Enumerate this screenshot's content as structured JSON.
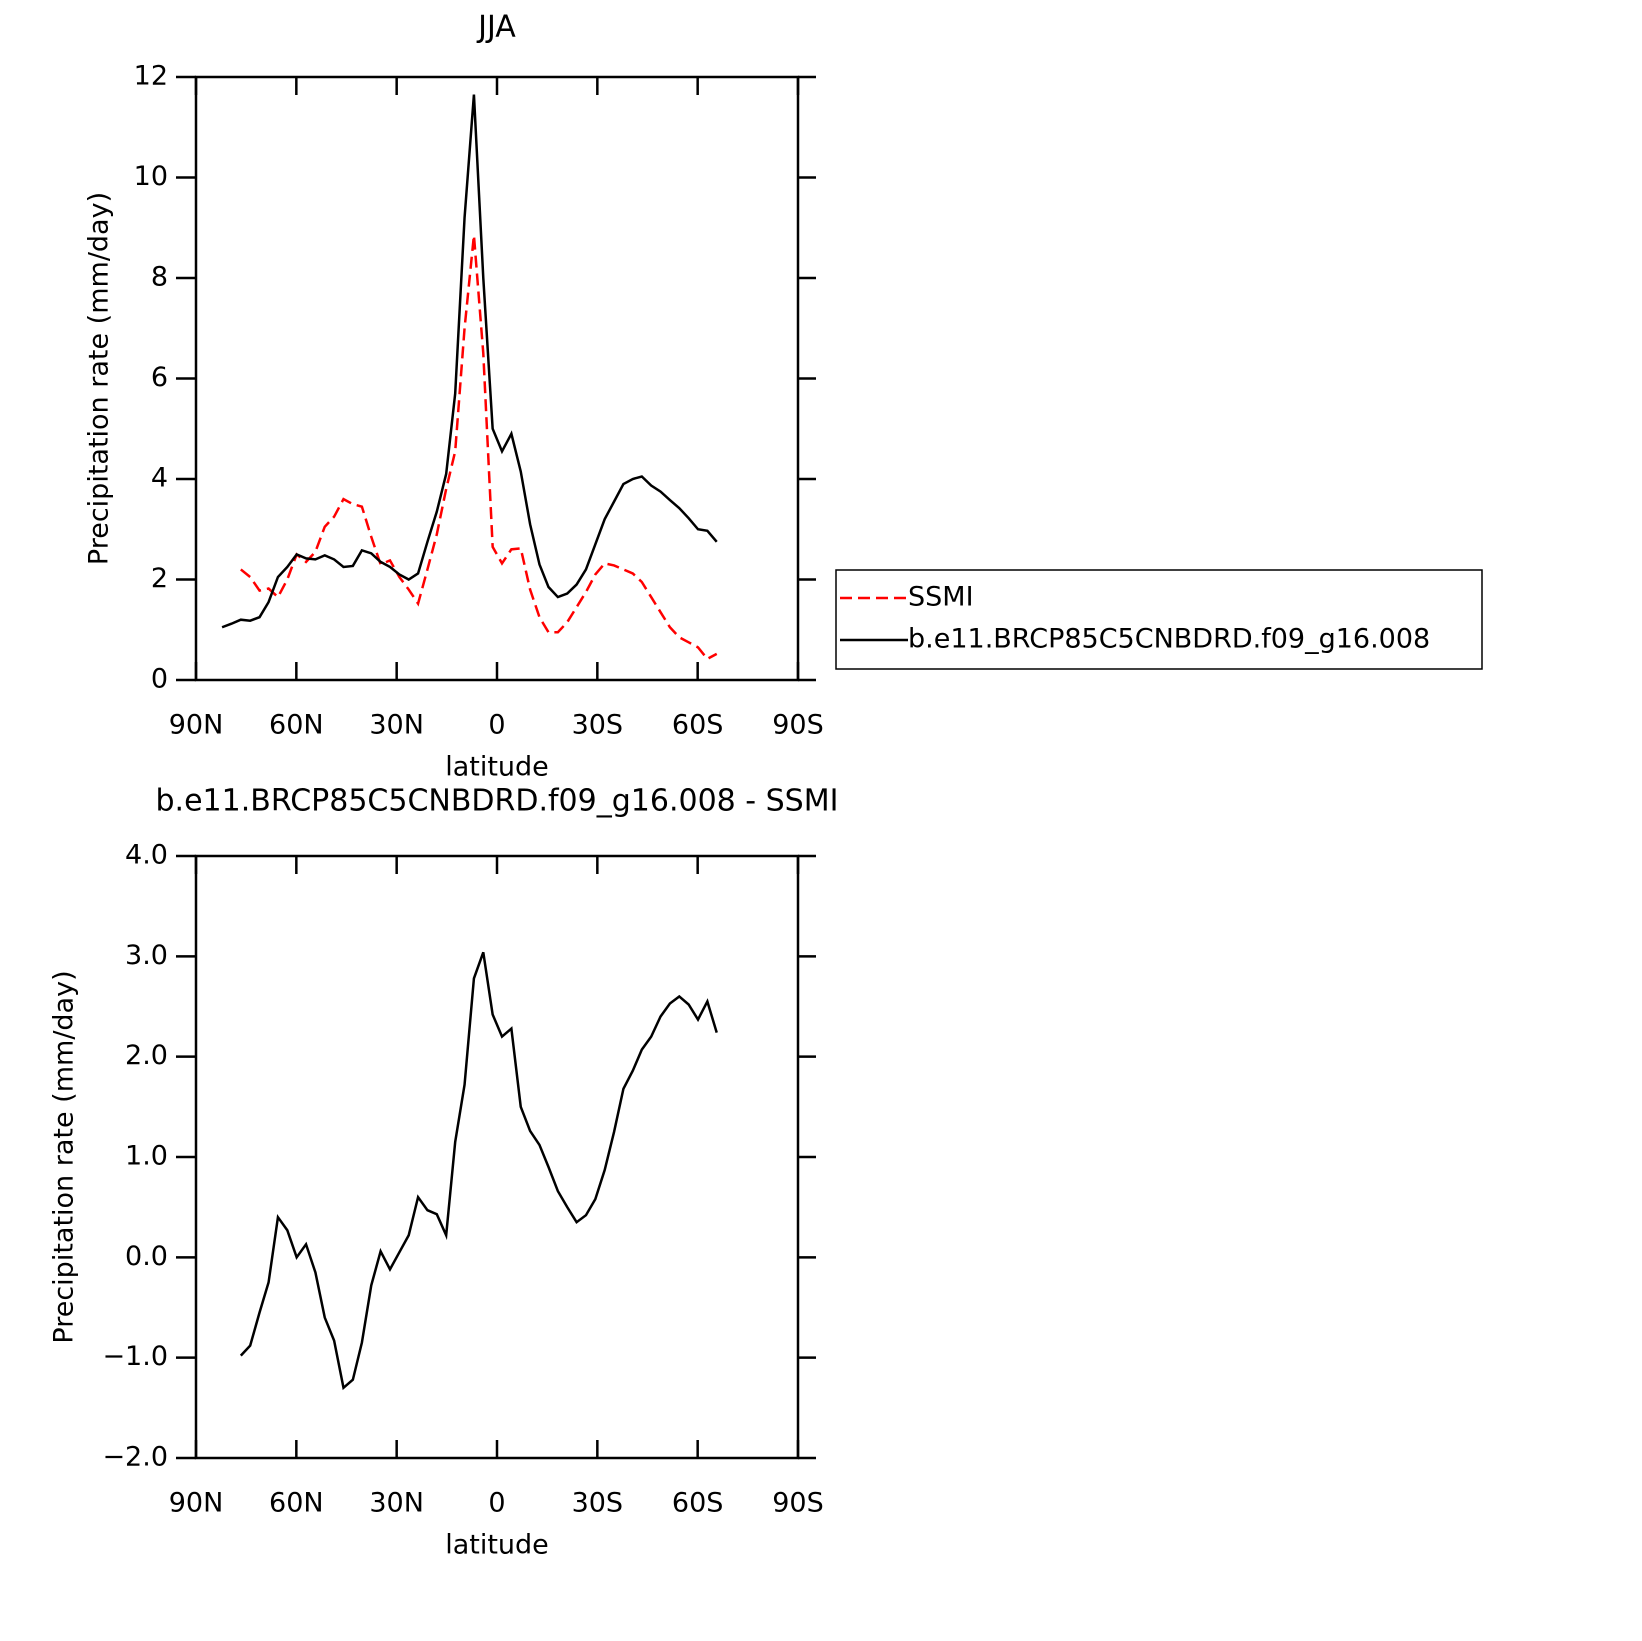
{
  "chart_data": [
    {
      "type": "line",
      "title": "JJA",
      "xlabel": "latitude",
      "ylabel": "Precipitation rate (mm/day)",
      "x": [
        82.2,
        79.4,
        76.6,
        73.8,
        71.0,
        68.3,
        65.5,
        62.7,
        59.9,
        57.1,
        54.3,
        51.5,
        48.7,
        45.9,
        43.1,
        40.4,
        37.6,
        34.8,
        32.0,
        29.2,
        26.4,
        23.6,
        20.8,
        18.0,
        15.2,
        12.5,
        9.7,
        6.9,
        4.1,
        1.3,
        -1.5,
        -4.3,
        -7.1,
        -9.9,
        -12.7,
        -15.4,
        -18.2,
        -21.0,
        -23.8,
        -26.6,
        -29.4,
        -32.2,
        -35.0,
        -37.8,
        -40.6,
        -43.3,
        -46.1,
        -48.9,
        -51.7,
        -54.5,
        -57.3,
        -60.1,
        -62.9,
        -65.7
      ],
      "series": [
        {
          "name": "SSMI",
          "color": "#ff0000",
          "dash": true,
          "values": [
            null,
            null,
            2.2,
            2.05,
            1.78,
            1.82,
            1.65,
            2.0,
            2.5,
            2.35,
            2.55,
            3.05,
            3.25,
            3.6,
            3.5,
            3.45,
            2.85,
            2.3,
            2.38,
            2.05,
            1.8,
            1.52,
            2.2,
            2.9,
            3.8,
            4.55,
            7.0,
            8.85,
            6.5,
            2.65,
            2.32,
            2.6,
            2.62,
            1.8,
            1.25,
            0.95,
            0.95,
            1.15,
            1.45,
            1.75,
            2.1,
            2.32,
            2.28,
            2.2,
            2.12,
            1.95,
            1.65,
            1.35,
            1.05,
            0.85,
            0.75,
            0.65,
            0.42,
            0.52
          ]
        },
        {
          "name": "b.e11.BRCP85C5CNBDRD.f09_g16.008",
          "color": "#000000",
          "dash": false,
          "values": [
            1.05,
            1.12,
            1.2,
            1.18,
            1.25,
            1.55,
            2.05,
            2.25,
            2.5,
            2.42,
            2.4,
            2.48,
            2.4,
            2.25,
            2.27,
            2.58,
            2.52,
            2.35,
            2.25,
            2.1,
            2.0,
            2.12,
            2.75,
            3.35,
            4.1,
            5.7,
            9.2,
            11.65,
            8.0,
            5.0,
            4.55,
            4.9,
            4.15,
            3.1,
            2.3,
            1.85,
            1.65,
            1.72,
            1.9,
            2.2,
            2.7,
            3.2,
            3.55,
            3.9,
            4.0,
            4.05,
            3.87,
            3.75,
            3.58,
            3.42,
            3.22,
            3.0,
            2.97,
            2.75
          ]
        }
      ],
      "xlim": [
        90,
        -90
      ],
      "xticks": [
        {
          "value": 90,
          "label": "90N"
        },
        {
          "value": 60,
          "label": "60N"
        },
        {
          "value": 30,
          "label": "30N"
        },
        0,
        {
          "value": -30,
          "label": "30S"
        },
        {
          "value": -60,
          "label": "60S"
        },
        {
          "value": -90,
          "label": "90S"
        }
      ],
      "ylim": [
        0,
        12
      ],
      "yticks": [
        0,
        2,
        4,
        6,
        8,
        10,
        12
      ],
      "legend": "right"
    },
    {
      "type": "line",
      "title": "b.e11.BRCP85C5CNBDRD.f09_g16.008 - SSMI",
      "xlabel": "latitude",
      "ylabel": "Precipitation rate (mm/day)",
      "x": [
        82.2,
        79.4,
        76.6,
        73.8,
        71.0,
        68.3,
        65.5,
        62.7,
        59.9,
        57.1,
        54.3,
        51.5,
        48.7,
        45.9,
        43.1,
        40.4,
        37.6,
        34.8,
        32.0,
        29.2,
        26.4,
        23.6,
        20.8,
        18.0,
        15.2,
        12.5,
        9.7,
        6.9,
        4.1,
        1.3,
        -1.5,
        -4.3,
        -7.1,
        -9.9,
        -12.7,
        -15.4,
        -18.2,
        -21.0,
        -23.8,
        -26.6,
        -29.4,
        -32.2,
        -35.0,
        -37.8,
        -40.6,
        -43.3,
        -46.1,
        -48.9,
        -51.7,
        -54.5,
        -57.3,
        -60.1,
        -62.9,
        -65.7
      ],
      "series": [
        {
          "color": "#000000",
          "dash": false,
          "values": [
            null,
            null,
            -0.98,
            -0.88,
            -0.55,
            -0.25,
            0.4,
            0.27,
            0.0,
            0.13,
            -0.15,
            -0.6,
            -0.83,
            -1.3,
            -1.22,
            -0.85,
            -0.28,
            0.06,
            -0.12,
            0.05,
            0.22,
            0.6,
            0.47,
            0.43,
            0.22,
            1.15,
            1.72,
            2.78,
            3.04,
            2.42,
            2.2,
            2.28,
            1.5,
            1.26,
            1.12,
            0.9,
            0.66,
            0.5,
            0.35,
            0.42,
            0.58,
            0.87,
            1.25,
            1.68,
            1.86,
            2.07,
            2.2,
            2.4,
            2.53,
            2.6,
            2.52,
            2.37,
            2.55,
            2.24
          ]
        }
      ],
      "xlim": [
        90,
        -90
      ],
      "xticks": [
        {
          "value": 90,
          "label": "90N"
        },
        {
          "value": 60,
          "label": "60N"
        },
        {
          "value": 30,
          "label": "30N"
        },
        0,
        {
          "value": -30,
          "label": "30S"
        },
        {
          "value": -60,
          "label": "60S"
        },
        {
          "value": -90,
          "label": "90S"
        }
      ],
      "ylim": [
        -2,
        4
      ],
      "yticks": [
        {
          "value": -2,
          "label": "−2.0"
        },
        {
          "value": -1,
          "label": "−1.0"
        },
        {
          "value": 0,
          "label": "0.0"
        },
        {
          "value": 1,
          "label": "1.0"
        },
        {
          "value": 2,
          "label": "2.0"
        },
        {
          "value": 3,
          "label": "3.0"
        },
        {
          "value": 4,
          "label": "4.0"
        }
      ]
    }
  ]
}
